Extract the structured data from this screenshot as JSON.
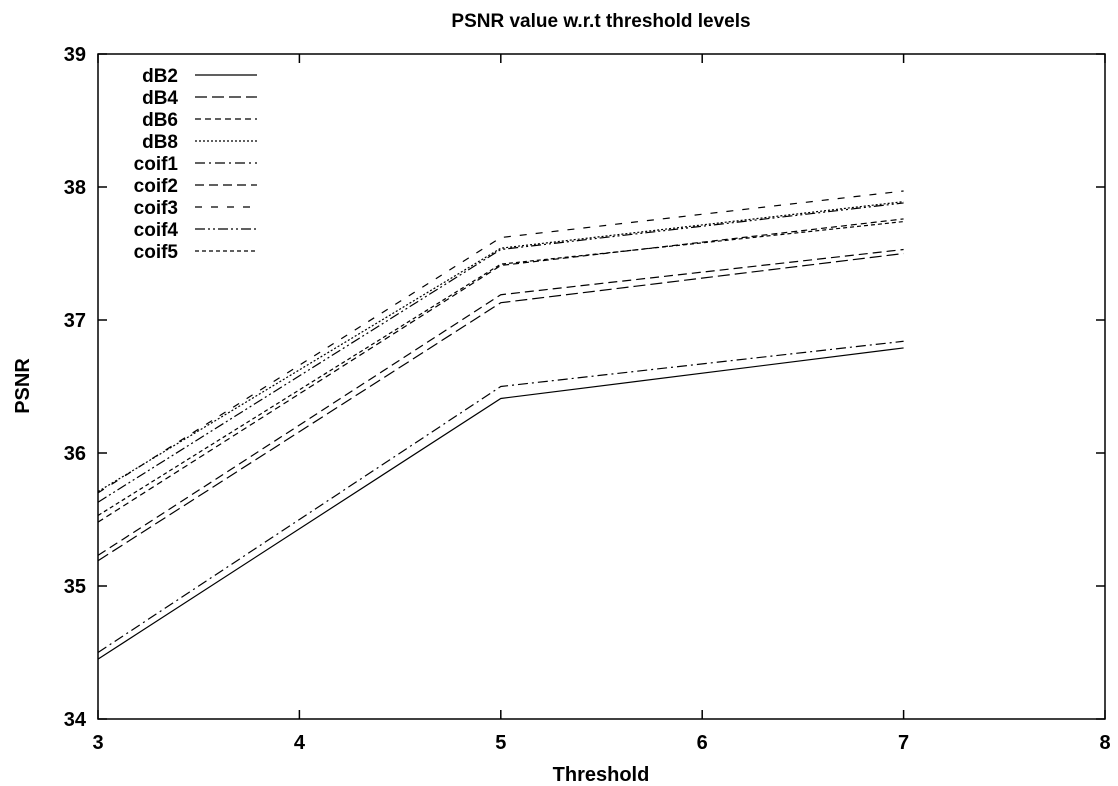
{
  "chart_data": {
    "type": "line",
    "title": "PSNR value w.r.t threshold levels",
    "xlabel": "Threshold",
    "ylabel": "PSNR",
    "xlim": [
      3,
      8
    ],
    "ylim": [
      34,
      39
    ],
    "xticks": [
      3,
      4,
      5,
      6,
      7,
      8
    ],
    "yticks": [
      34,
      35,
      36,
      37,
      38,
      39
    ],
    "grid": false,
    "legend_position": "top-left",
    "x": [
      3,
      5,
      7
    ],
    "series": [
      {
        "name": "dB2",
        "dash": "solid",
        "values": [
          34.45,
          36.41,
          36.79
        ]
      },
      {
        "name": "dB4",
        "dash": "long-dash",
        "values": [
          35.19,
          37.13,
          37.5
        ]
      },
      {
        "name": "dB6",
        "dash": "short-dash",
        "values": [
          35.48,
          37.41,
          37.76
        ]
      },
      {
        "name": "dB8",
        "dash": "dotted",
        "values": [
          35.71,
          37.54,
          37.89
        ]
      },
      {
        "name": "coif1",
        "dash": "dash-dot",
        "values": [
          34.5,
          36.5,
          36.84
        ]
      },
      {
        "name": "coif2",
        "dash": "medium-dash",
        "values": [
          35.23,
          37.19,
          37.53
        ]
      },
      {
        "name": "coif3",
        "dash": "sparse-dash",
        "values": [
          35.7,
          37.62,
          37.97
        ]
      },
      {
        "name": "coif4",
        "dash": "dash-dot-dot",
        "values": [
          35.63,
          37.53,
          37.88
        ]
      },
      {
        "name": "coif5",
        "dash": "fine-dash",
        "values": [
          35.53,
          37.42,
          37.74
        ]
      }
    ]
  }
}
